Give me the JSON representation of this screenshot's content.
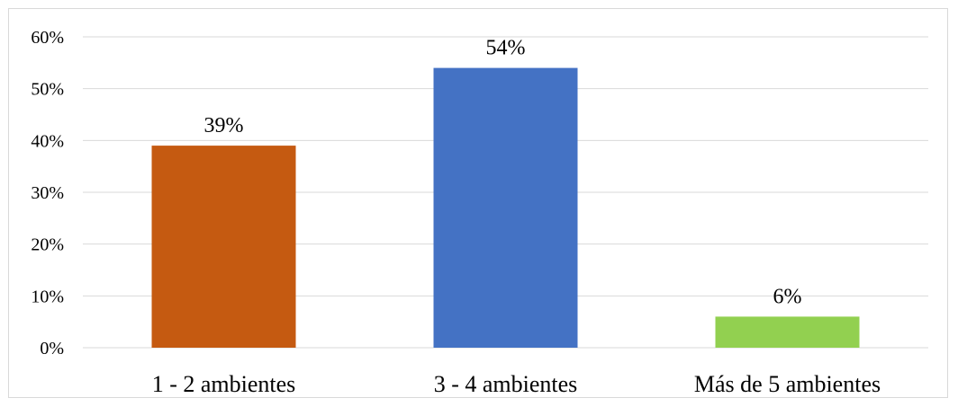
{
  "chart_data": {
    "type": "bar",
    "title": "",
    "xlabel": "",
    "ylabel": "",
    "categories": [
      "1 - 2 ambientes",
      "3 - 4 ambientes",
      "Más de 5 ambientes"
    ],
    "values": [
      39,
      54,
      6
    ],
    "value_labels": [
      "39%",
      "54%",
      "6%"
    ],
    "bar_colors": [
      "#C55A11",
      "#4472C4",
      "#92D050"
    ],
    "ylim": [
      0,
      60
    ],
    "yticks": [
      0,
      10,
      20,
      30,
      40,
      50,
      60
    ],
    "ytick_labels": [
      "0%",
      "10%",
      "20%",
      "30%",
      "40%",
      "50%",
      "60%"
    ],
    "grid": true,
    "legend": "none"
  },
  "colors": {
    "gridline": "#d9d9d9",
    "axis": "#d9d9d9",
    "text": "#000000"
  }
}
